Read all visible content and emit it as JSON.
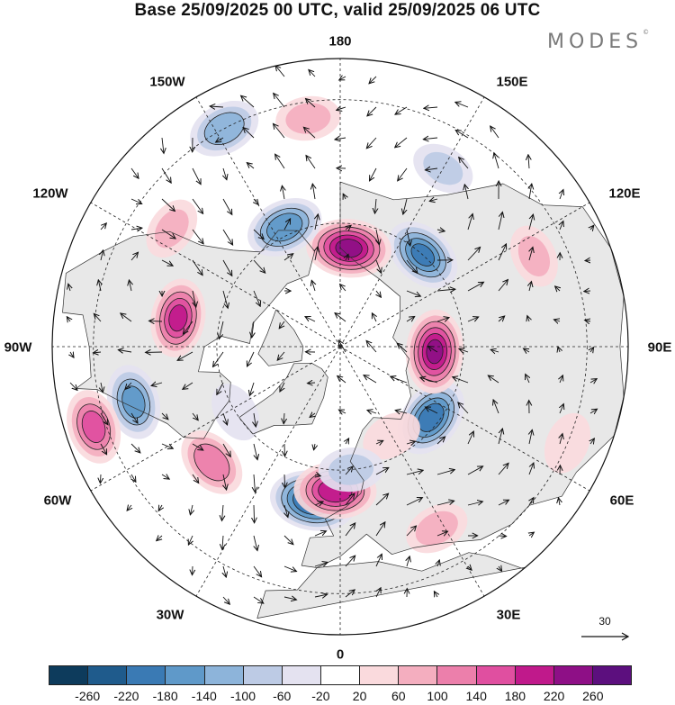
{
  "title": "Base 25/09/2025 00 UTC, valid 25/09/2025 06 UTC",
  "logo": {
    "text": "MODES",
    "mark": "©"
  },
  "longitude_labels": {
    "top": "180",
    "bottom": "0",
    "left": "90W",
    "right": "90E",
    "upper_left": "150W",
    "upper_right": "150E",
    "mid_left": "120W",
    "mid_right": "120E",
    "lower_left": "60W",
    "lower_right": "60E",
    "bottom_left": "30W",
    "bottom_right": "30E"
  },
  "reference_vector": {
    "label": "30"
  },
  "colorbar": {
    "colors": [
      "#0d3b5c",
      "#1f5b8c",
      "#3a7ab4",
      "#5f99c9",
      "#8db4da",
      "#bdcbe5",
      "#e4e2f0",
      "#ffffff",
      "#fadadd",
      "#f4aebf",
      "#ec7fab",
      "#e04fa0",
      "#c0198b",
      "#8e0f86",
      "#5c0f7e"
    ],
    "ticks": [
      "-260",
      "-220",
      "-180",
      "-140",
      "-100",
      "-60",
      "-20",
      "20",
      "60",
      "100",
      "140",
      "180",
      "220",
      "260"
    ]
  },
  "anomaly_centers": [
    {
      "lon": -10,
      "lat": 52,
      "value": -260
    },
    {
      "lon": -2,
      "lat": 55,
      "value": 230
    },
    {
      "lon": 52,
      "lat": 62,
      "value": -220
    },
    {
      "lon": 87,
      "lat": 67,
      "value": 240
    },
    {
      "lon": 138,
      "lat": 60,
      "value": -200
    },
    {
      "lon": 175,
      "lat": 66,
      "value": 250
    },
    {
      "lon": -155,
      "lat": 58,
      "value": -190
    },
    {
      "lon": -152,
      "lat": 30,
      "value": -150
    },
    {
      "lon": -172,
      "lat": 34,
      "value": 90
    },
    {
      "lon": -100,
      "lat": 50,
      "value": 200
    },
    {
      "lon": -75,
      "lat": 38,
      "value": -170
    },
    {
      "lon": -72,
      "lat": 27,
      "value": 170
    },
    {
      "lon": -48,
      "lat": 48,
      "value": 150
    },
    {
      "lon": -58,
      "lat": 60,
      "value": -60
    },
    {
      "lon": -125,
      "lat": 40,
      "value": 80
    },
    {
      "lon": 150,
      "lat": 40,
      "value": -80
    },
    {
      "lon": 115,
      "lat": 38,
      "value": 80
    },
    {
      "lon": 28,
      "lat": 40,
      "value": 90
    },
    {
      "lon": 30,
      "lat": 65,
      "value": 60
    },
    {
      "lon": 67,
      "lat": 30,
      "value": 70
    },
    {
      "lon": 5,
      "lat": 60,
      "value": -90
    }
  ]
}
